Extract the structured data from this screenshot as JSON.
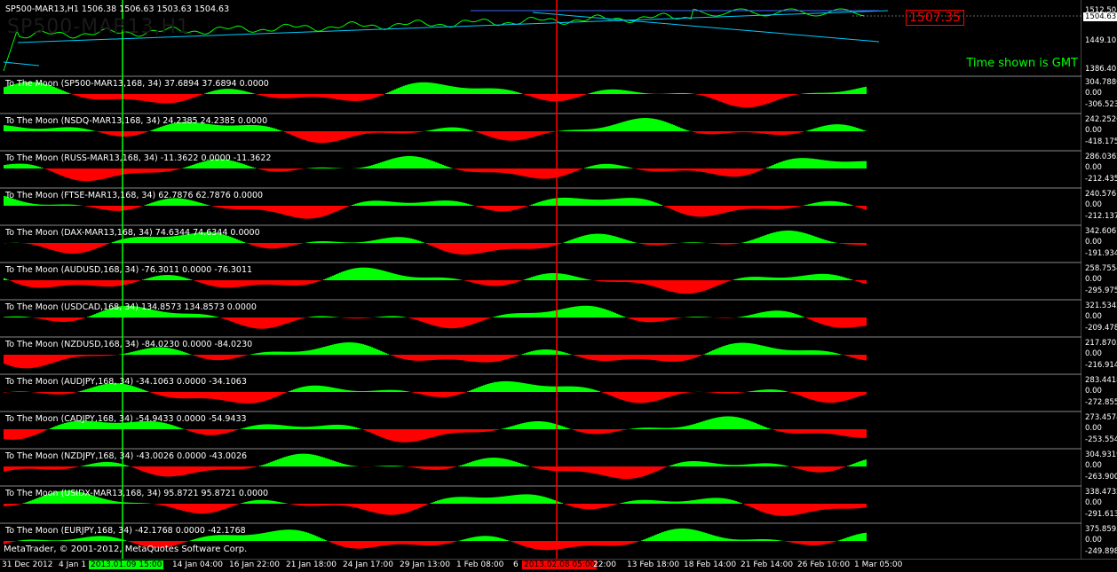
{
  "main": {
    "title": "SP500-MAR13,H1  1506.38 1506.63 1503.63 1504.63",
    "watermark": "SP500-MAR13,H1",
    "current_price": "1504.63",
    "marked_price": "1507.35",
    "scale": [
      "1512.50",
      "1449.10",
      "1386.40"
    ],
    "gmt_note": "Time shown is GMT",
    "colors": {
      "up": "#00ff00",
      "down": "#ff0000",
      "line": "#00ccff"
    }
  },
  "panels": [
    {
      "title": "To The Moon (SP500-MAR13,168, 34) 37.6894 37.6894 0.0000",
      "max": "304.7886",
      "zero": "0.00",
      "min": "-306.523"
    },
    {
      "title": "To The Moon (NSDQ-MAR13,168, 34) 24.2385 24.2385 0.0000",
      "max": "242.2526",
      "zero": "0.00",
      "min": "-418.175"
    },
    {
      "title": "To The Moon (RUSS-MAR13,168, 34) -11.3622 0.0000 -11.3622",
      "max": "286.0362",
      "zero": "0.00",
      "min": "-212.435"
    },
    {
      "title": "To The Moon (FTSE-MAR13,168, 34) 62.7876 62.7876 0.0000",
      "max": "240.5761",
      "zero": "0.00",
      "min": "-212.137"
    },
    {
      "title": "To The Moon (DAX-MAR13,168, 34) 74.6344 74.6344 0.0000",
      "max": "342.6067",
      "zero": "0.00",
      "min": "-191.934"
    },
    {
      "title": "To The Moon (AUDUSD,168, 34) -76.3011 0.0000 -76.3011",
      "max": "258.7554",
      "zero": "0.00",
      "min": "-295.975"
    },
    {
      "title": "To The Moon (USDCAD,168, 34) 134.8573 134.8573 0.0000",
      "max": "321.5342",
      "zero": "0.00",
      "min": "-209.478"
    },
    {
      "title": "To The Moon (NZDUSD,168, 34) -84.0230 0.0000 -84.0230",
      "max": "217.8703",
      "zero": "0.00",
      "min": "-216.914"
    },
    {
      "title": "To The Moon (AUDJPY,168, 34) -34.1063 0.0000 -34.1063",
      "max": "283.4418",
      "zero": "0.00",
      "min": "-272.855"
    },
    {
      "title": "To The Moon (CADJPY,168, 34) -54.9433 0.0000 -54.9433",
      "max": "273.4574",
      "zero": "0.00",
      "min": "-253.554"
    },
    {
      "title": "To The Moon (NZDJPY,168, 34) -43.0026 0.0000 -43.0026",
      "max": "304.9319",
      "zero": "0.00",
      "min": "-263.900"
    },
    {
      "title": "To The Moon (USIDX-MAR13,168, 34) 95.8721 95.8721 0.0000",
      "max": "338.4732",
      "zero": "0.00",
      "min": "-291.613"
    },
    {
      "title": "To The Moon (EURJPY,168, 34) -42.1768 0.0000 -42.1768",
      "max": "375.8595",
      "zero": "0.00",
      "min": "-249.898"
    }
  ],
  "footer": "MetaTrader, © 2001-2012, MetaQuotes Software Corp.",
  "time_labels": [
    "31 Dec 2012",
    "4 Jan 1",
    "2013.01.09 15:00",
    "14 Jan 04:00",
    "16 Jan 22:00",
    "21 Jan 18:00",
    "24 Jan 17:00",
    "29 Jan 13:00",
    "1 Feb 08:00",
    "6",
    "2013.02.08 05:00",
    "22:00",
    "13 Feb 18:00",
    "18 Feb 14:00",
    "21 Feb 14:00",
    "26 Feb 10:00",
    "1 Mar 05:00"
  ]
}
